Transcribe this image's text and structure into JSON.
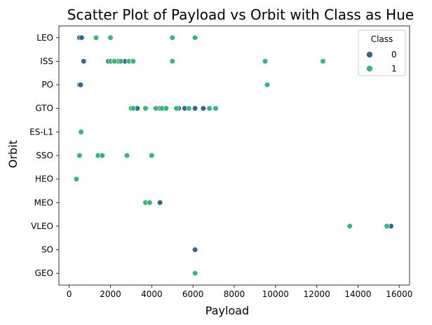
{
  "chart_data": {
    "type": "scatter",
    "title": "Scatter Plot of Payload vs Orbit with Class as Hue",
    "xlabel": "Payload",
    "ylabel": "Orbit",
    "xlim": [
      -500,
      16500
    ],
    "xticks": [
      0,
      2000,
      4000,
      6000,
      8000,
      10000,
      12000,
      14000,
      16000
    ],
    "categories": [
      "LEO",
      "ISS",
      "PO",
      "GTO",
      "ES-L1",
      "SSO",
      "HEO",
      "MEO",
      "VLEO",
      "SO",
      "GEO"
    ],
    "grid": false,
    "legend": {
      "title": "Class",
      "placement": "top-right",
      "entries": [
        {
          "label": "0",
          "color": "#31688e"
        },
        {
          "label": "1",
          "color": "#35b779"
        }
      ]
    },
    "series": [
      {
        "class": "0",
        "color": "#31688e",
        "points": [
          {
            "x": 500,
            "y": "LEO"
          },
          {
            "x": 600,
            "y": "LEO"
          },
          {
            "x": 700,
            "y": "ISS"
          },
          {
            "x": 1900,
            "y": "ISS"
          },
          {
            "x": 2400,
            "y": "ISS"
          },
          {
            "x": 2700,
            "y": "ISS"
          },
          {
            "x": 500,
            "y": "PO"
          },
          {
            "x": 550,
            "y": "PO"
          },
          {
            "x": 3300,
            "y": "GTO"
          },
          {
            "x": 4400,
            "y": "GTO"
          },
          {
            "x": 5300,
            "y": "GTO"
          },
          {
            "x": 5600,
            "y": "GTO"
          },
          {
            "x": 6100,
            "y": "GTO"
          },
          {
            "x": 6500,
            "y": "GTO"
          },
          {
            "x": 4400,
            "y": "MEO"
          },
          {
            "x": 15600,
            "y": "VLEO"
          },
          {
            "x": 6100,
            "y": "SO"
          }
        ]
      },
      {
        "class": "1",
        "color": "#35b779",
        "points": [
          {
            "x": 1300,
            "y": "LEO"
          },
          {
            "x": 2000,
            "y": "LEO"
          },
          {
            "x": 5000,
            "y": "LEO"
          },
          {
            "x": 6100,
            "y": "LEO"
          },
          {
            "x": 2000,
            "y": "ISS"
          },
          {
            "x": 2200,
            "y": "ISS"
          },
          {
            "x": 2500,
            "y": "ISS"
          },
          {
            "x": 2900,
            "y": "ISS"
          },
          {
            "x": 3100,
            "y": "ISS"
          },
          {
            "x": 5000,
            "y": "ISS"
          },
          {
            "x": 9500,
            "y": "ISS"
          },
          {
            "x": 12300,
            "y": "ISS"
          },
          {
            "x": 9600,
            "y": "PO"
          },
          {
            "x": 3000,
            "y": "GTO"
          },
          {
            "x": 3100,
            "y": "GTO"
          },
          {
            "x": 3700,
            "y": "GTO"
          },
          {
            "x": 4200,
            "y": "GTO"
          },
          {
            "x": 4500,
            "y": "GTO"
          },
          {
            "x": 4700,
            "y": "GTO"
          },
          {
            "x": 5200,
            "y": "GTO"
          },
          {
            "x": 5800,
            "y": "GTO"
          },
          {
            "x": 6800,
            "y": "GTO"
          },
          {
            "x": 7100,
            "y": "GTO"
          },
          {
            "x": 570,
            "y": "ES-L1"
          },
          {
            "x": 500,
            "y": "SSO"
          },
          {
            "x": 1400,
            "y": "SSO"
          },
          {
            "x": 1600,
            "y": "SSO"
          },
          {
            "x": 2800,
            "y": "SSO"
          },
          {
            "x": 4000,
            "y": "SSO"
          },
          {
            "x": 350,
            "y": "HEO"
          },
          {
            "x": 3700,
            "y": "MEO"
          },
          {
            "x": 3900,
            "y": "MEO"
          },
          {
            "x": 13600,
            "y": "VLEO"
          },
          {
            "x": 15400,
            "y": "VLEO"
          },
          {
            "x": 6100,
            "y": "GEO"
          }
        ]
      }
    ]
  }
}
